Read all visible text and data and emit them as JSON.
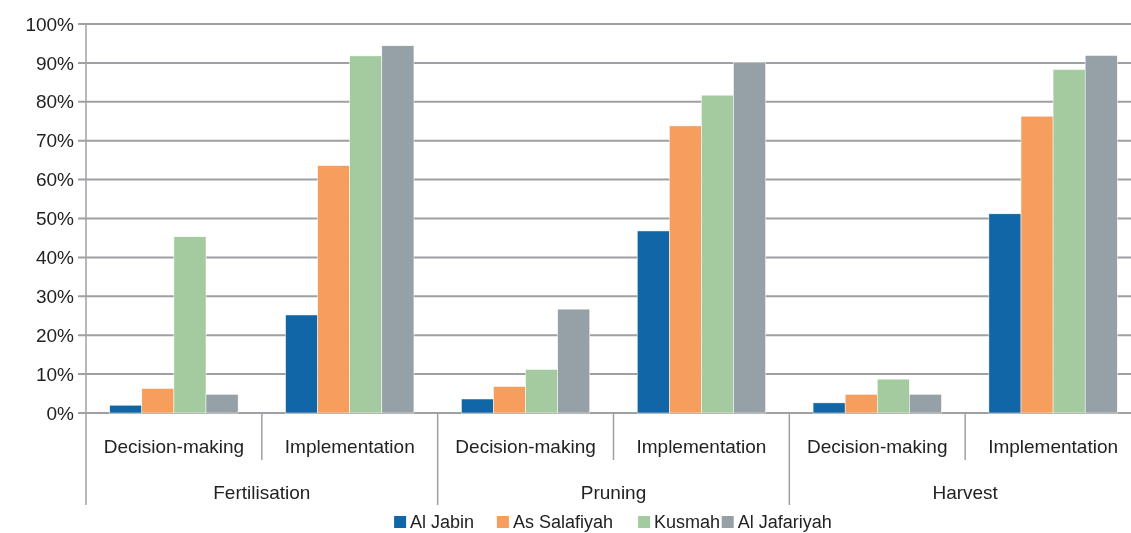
{
  "chart_data": {
    "type": "bar",
    "categories": [
      "Decision-making",
      "Implementation",
      "Decision-making",
      "Implementation",
      "Decision-making",
      "Implementation"
    ],
    "annotations": [
      "Fertilisation",
      "Pruning",
      "Harvest"
    ],
    "series": [
      {
        "name": "Al Jabin",
        "color": "#1166a7",
        "values": [
          2,
          25.2,
          3.6,
          46.8,
          2.6,
          51.2
        ]
      },
      {
        "name": "As Salafiyah",
        "color": "#f59e5e",
        "values": [
          6.3,
          63.6,
          6.8,
          73.8,
          4.8,
          76.3
        ]
      },
      {
        "name": "Kusmah",
        "color": "#a4ca9f",
        "values": [
          45.3,
          91.8,
          11.2,
          81.7,
          8.7,
          88.3
        ]
      },
      {
        "name": "Al Jafariyah",
        "color": "#95a0a7",
        "values": [
          4.8,
          94.4,
          26.7,
          90.2,
          4.8,
          91.9
        ]
      }
    ],
    "ylim": [
      0,
      100
    ],
    "yticks": [
      {
        "value": 0,
        "label": "0%"
      },
      {
        "value": 10,
        "label": "10%"
      },
      {
        "value": 20,
        "label": "20%"
      },
      {
        "value": 30,
        "label": "30%"
      },
      {
        "value": 40,
        "label": "40%"
      },
      {
        "value": 50,
        "label": "50%"
      },
      {
        "value": 60,
        "label": "60%"
      },
      {
        "value": 70,
        "label": "70%"
      },
      {
        "value": 80,
        "label": "80%"
      },
      {
        "value": 90,
        "label": "90%"
      },
      {
        "value": 100,
        "label": "100%"
      }
    ],
    "grid": "y",
    "legend": "bottom"
  }
}
